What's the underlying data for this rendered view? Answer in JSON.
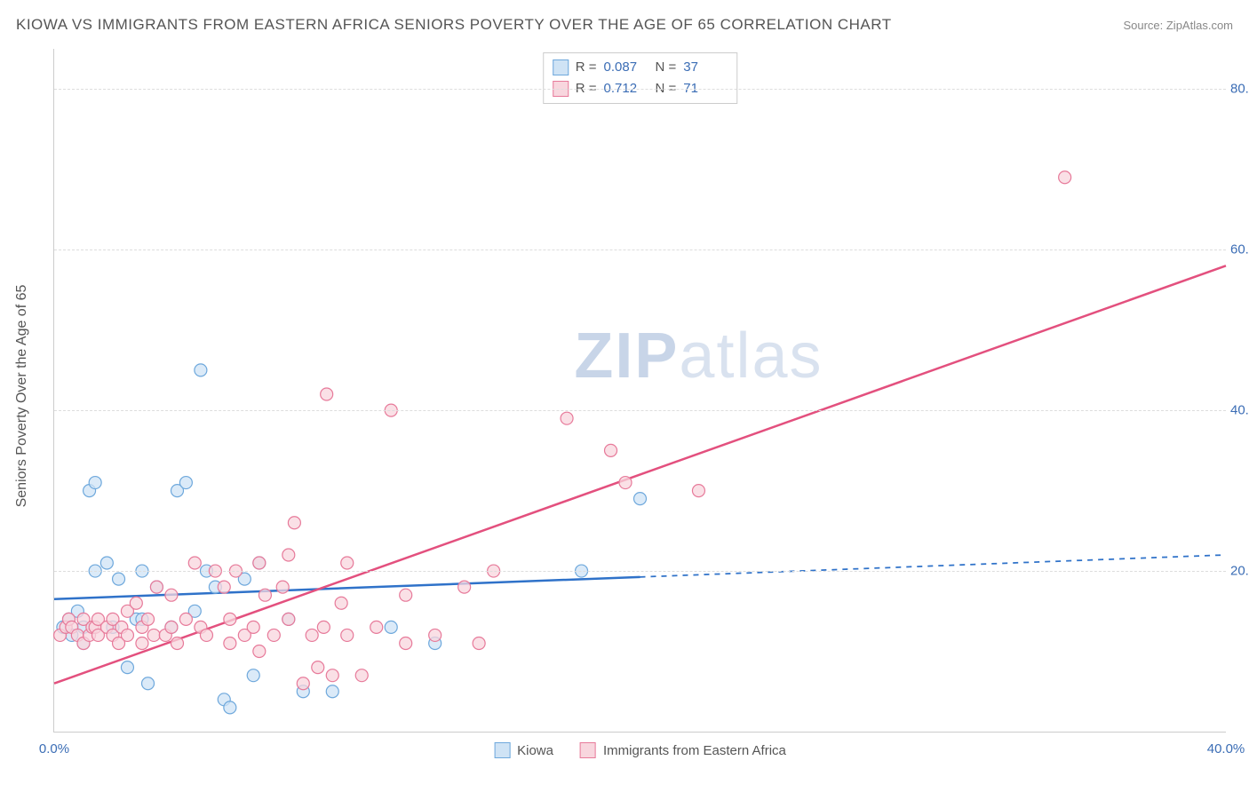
{
  "title": "KIOWA VS IMMIGRANTS FROM EASTERN AFRICA SENIORS POVERTY OVER THE AGE OF 65 CORRELATION CHART",
  "source": "Source: ZipAtlas.com",
  "ylabel": "Seniors Poverty Over the Age of 65",
  "watermark_a": "ZIP",
  "watermark_b": "atlas",
  "chart": {
    "type": "scatter-correlation",
    "xlim": [
      0,
      40
    ],
    "ylim": [
      0,
      85
    ],
    "xticks": [
      0,
      40
    ],
    "xtick_labels": [
      "0.0%",
      "40.0%"
    ],
    "yticks": [
      20,
      40,
      60,
      80
    ],
    "ytick_labels": [
      "20.0%",
      "40.0%",
      "60.0%",
      "80.0%"
    ],
    "grid_color": "#dddddd",
    "axis_color": "#cccccc",
    "tick_font_color": "#3b6db5",
    "background_color": "#ffffff",
    "marker_radius": 7,
    "marker_stroke_width": 1.2,
    "series": [
      {
        "name": "Kiowa",
        "fill": "#cfe3f5",
        "stroke": "#6ea8dc",
        "line_color": "#2f72c9",
        "line_width": 2.5,
        "R": "0.087",
        "N": "37",
        "trend": {
          "x1": 0,
          "y1": 16.5,
          "x2": 40,
          "y2": 22.0,
          "solid_until_x": 20
        },
        "points": [
          [
            0.3,
            13
          ],
          [
            0.5,
            14
          ],
          [
            0.6,
            12
          ],
          [
            0.8,
            15
          ],
          [
            1.0,
            13
          ],
          [
            1.0,
            11
          ],
          [
            1.2,
            30
          ],
          [
            1.4,
            31
          ],
          [
            1.4,
            20
          ],
          [
            1.8,
            21
          ],
          [
            2.0,
            13
          ],
          [
            2.2,
            19
          ],
          [
            2.5,
            8
          ],
          [
            2.8,
            14
          ],
          [
            3.0,
            20
          ],
          [
            3.0,
            14
          ],
          [
            3.2,
            6
          ],
          [
            3.5,
            18
          ],
          [
            4.0,
            13
          ],
          [
            4.2,
            30
          ],
          [
            4.5,
            31
          ],
          [
            4.8,
            15
          ],
          [
            5.0,
            45
          ],
          [
            5.2,
            20
          ],
          [
            5.5,
            18
          ],
          [
            5.8,
            4
          ],
          [
            6.0,
            3
          ],
          [
            6.5,
            19
          ],
          [
            6.8,
            7
          ],
          [
            7.0,
            21
          ],
          [
            8.0,
            14
          ],
          [
            8.5,
            5
          ],
          [
            9.5,
            5
          ],
          [
            11.5,
            13
          ],
          [
            13.0,
            11
          ],
          [
            18.0,
            20
          ],
          [
            20.0,
            29
          ]
        ]
      },
      {
        "name": "Immigrants from Eastern Africa",
        "fill": "#f8d6de",
        "stroke": "#e77a9a",
        "line_color": "#e3507e",
        "line_width": 2.5,
        "R": "0.712",
        "N": "71",
        "trend": {
          "x1": 0,
          "y1": 6.0,
          "x2": 40,
          "y2": 58.0,
          "solid_until_x": 40
        },
        "points": [
          [
            0.2,
            12
          ],
          [
            0.4,
            13
          ],
          [
            0.5,
            14
          ],
          [
            0.6,
            13
          ],
          [
            0.8,
            12
          ],
          [
            1.0,
            14
          ],
          [
            1.0,
            11
          ],
          [
            1.2,
            12
          ],
          [
            1.3,
            13
          ],
          [
            1.4,
            13
          ],
          [
            1.5,
            14
          ],
          [
            1.5,
            12
          ],
          [
            1.8,
            13
          ],
          [
            2.0,
            12
          ],
          [
            2.0,
            14
          ],
          [
            2.2,
            11
          ],
          [
            2.3,
            13
          ],
          [
            2.5,
            15
          ],
          [
            2.5,
            12
          ],
          [
            2.8,
            16
          ],
          [
            3.0,
            11
          ],
          [
            3.0,
            13
          ],
          [
            3.2,
            14
          ],
          [
            3.4,
            12
          ],
          [
            3.5,
            18
          ],
          [
            3.8,
            12
          ],
          [
            4.0,
            13
          ],
          [
            4.0,
            17
          ],
          [
            4.2,
            11
          ],
          [
            4.5,
            14
          ],
          [
            4.8,
            21
          ],
          [
            5.0,
            13
          ],
          [
            5.2,
            12
          ],
          [
            5.5,
            20
          ],
          [
            5.8,
            18
          ],
          [
            6.0,
            11
          ],
          [
            6.0,
            14
          ],
          [
            6.2,
            20
          ],
          [
            6.5,
            12
          ],
          [
            6.8,
            13
          ],
          [
            7.0,
            10
          ],
          [
            7.0,
            21
          ],
          [
            7.2,
            17
          ],
          [
            7.5,
            12
          ],
          [
            7.8,
            18
          ],
          [
            8.0,
            14
          ],
          [
            8.0,
            22
          ],
          [
            8.2,
            26
          ],
          [
            8.5,
            6
          ],
          [
            8.8,
            12
          ],
          [
            9.0,
            8
          ],
          [
            9.2,
            13
          ],
          [
            9.3,
            42
          ],
          [
            9.5,
            7
          ],
          [
            9.8,
            16
          ],
          [
            10.0,
            12
          ],
          [
            10.0,
            21
          ],
          [
            10.5,
            7
          ],
          [
            11.0,
            13
          ],
          [
            11.5,
            40
          ],
          [
            12.0,
            17
          ],
          [
            12.0,
            11
          ],
          [
            13.0,
            12
          ],
          [
            14.0,
            18
          ],
          [
            14.5,
            11
          ],
          [
            15.0,
            20
          ],
          [
            17.5,
            39
          ],
          [
            19.0,
            35
          ],
          [
            19.5,
            31
          ],
          [
            22.0,
            30
          ],
          [
            34.5,
            69
          ]
        ]
      }
    ]
  },
  "legend_top_label_R": "R =",
  "legend_top_label_N": "N =",
  "legend_bottom": {
    "items": [
      "Kiowa",
      "Immigrants from Eastern Africa"
    ]
  }
}
